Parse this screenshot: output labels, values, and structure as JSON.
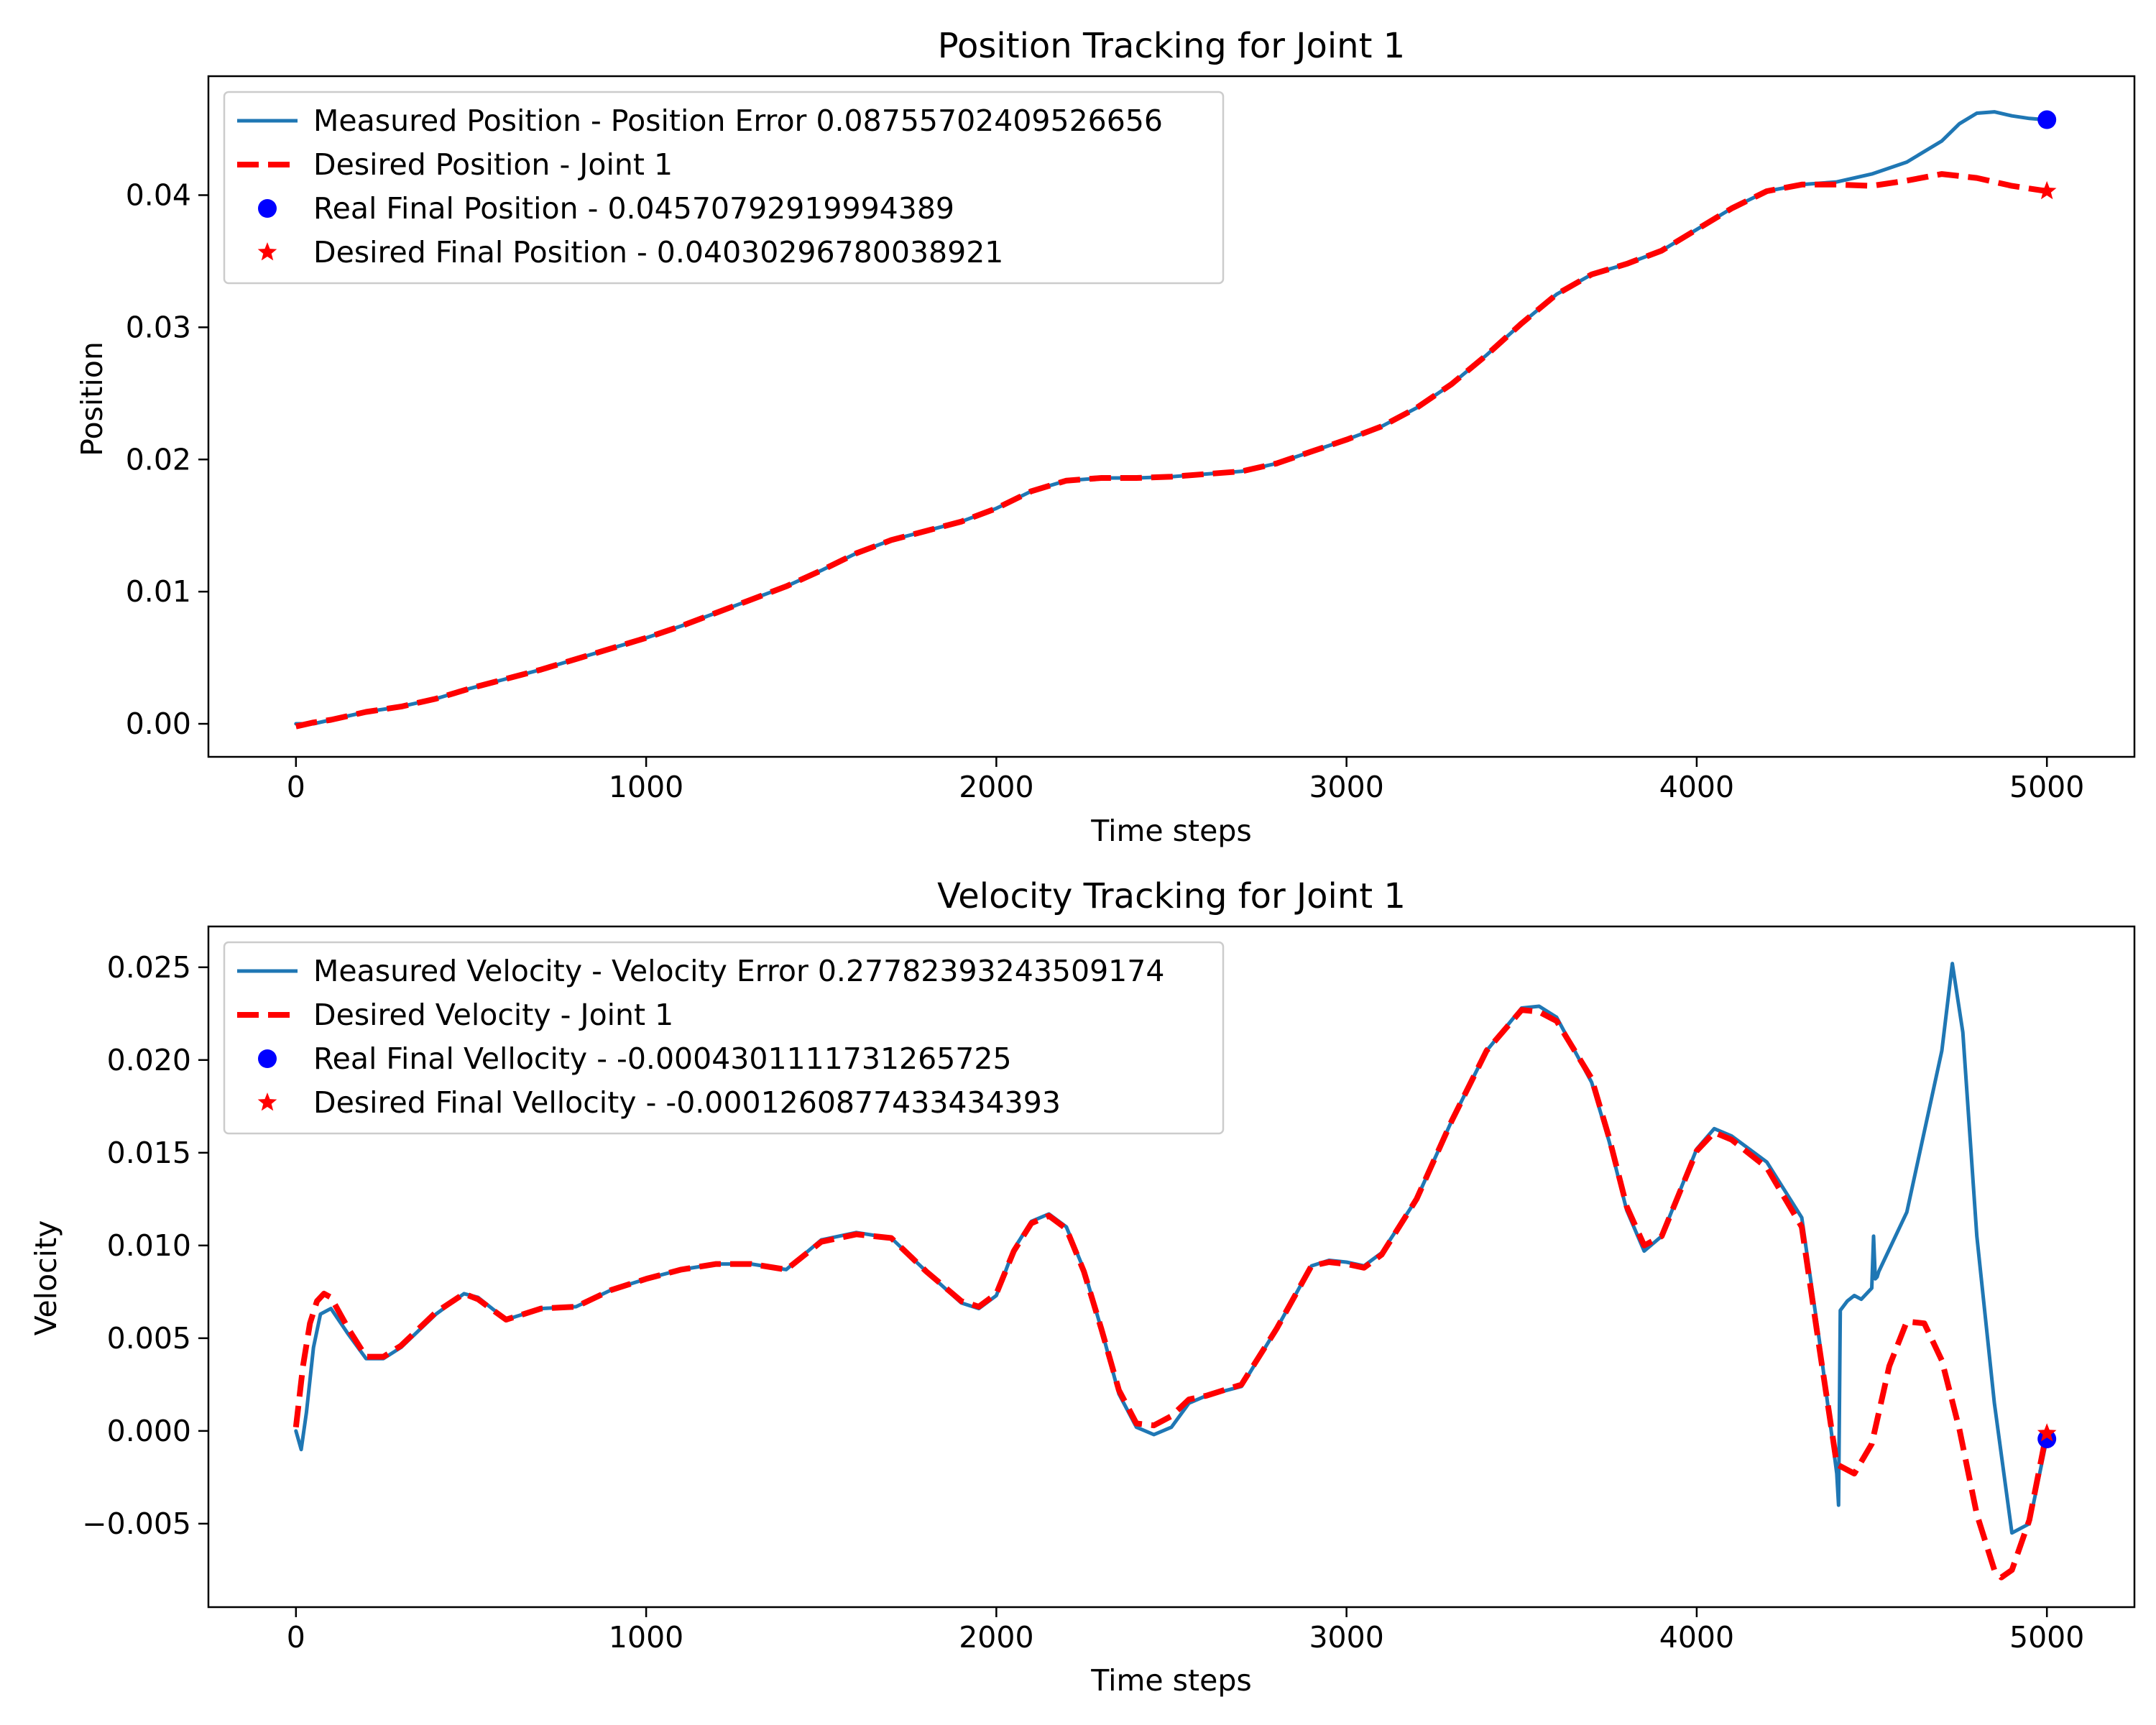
{
  "chart_data": [
    {
      "type": "line",
      "title": "Position Tracking for Joint 1",
      "xlabel": "Time steps",
      "ylabel": "Position",
      "xlim": [
        -250,
        5250
      ],
      "ylim": [
        -0.0025,
        0.049
      ],
      "xticks": [
        0,
        1000,
        2000,
        3000,
        4000,
        5000
      ],
      "xtick_labels": [
        "0",
        "1000",
        "2000",
        "3000",
        "4000",
        "5000"
      ],
      "yticks": [
        0.0,
        0.01,
        0.02,
        0.03,
        0.04
      ],
      "ytick_labels": [
        "0.00",
        "0.01",
        "0.02",
        "0.03",
        "0.04"
      ],
      "grid": false,
      "legend_position": "upper left",
      "series": [
        {
          "name": "Measured Position - Position Error 0.08755702409526656",
          "style": "solid",
          "color": "#1f77b4",
          "x": [
            0,
            50,
            100,
            150,
            200,
            300,
            400,
            500,
            600,
            700,
            800,
            900,
            1000,
            1100,
            1200,
            1300,
            1400,
            1500,
            1600,
            1700,
            1800,
            1900,
            2000,
            2100,
            2200,
            2300,
            2400,
            2500,
            2600,
            2700,
            2800,
            2900,
            3000,
            3100,
            3200,
            3300,
            3400,
            3500,
            3600,
            3700,
            3800,
            3900,
            4000,
            4100,
            4200,
            4300,
            4400,
            4500,
            4600,
            4700,
            4750,
            4800,
            4850,
            4900,
            4950,
            5000
          ],
          "y": [
            0.0,
            0.0,
            0.0003,
            0.0006,
            0.0009,
            0.0013,
            0.0019,
            0.0027,
            0.0034,
            0.0041,
            0.0049,
            0.0057,
            0.0065,
            0.0074,
            0.0084,
            0.0094,
            0.0104,
            0.0116,
            0.0129,
            0.0139,
            0.0146,
            0.0153,
            0.0163,
            0.0176,
            0.0184,
            0.0186,
            0.0186,
            0.0187,
            0.0189,
            0.0191,
            0.0197,
            0.0206,
            0.0215,
            0.0225,
            0.0239,
            0.0257,
            0.0279,
            0.0303,
            0.0325,
            0.034,
            0.0348,
            0.0358,
            0.0374,
            0.039,
            0.0403,
            0.0408,
            0.041,
            0.0416,
            0.0425,
            0.0441,
            0.0454,
            0.0462,
            0.0463,
            0.046,
            0.0458,
            0.0457
          ]
        },
        {
          "name": "Desired Position - Joint 1",
          "style": "dashed",
          "color": "#ff0000",
          "x": [
            0,
            50,
            100,
            150,
            200,
            300,
            400,
            500,
            600,
            700,
            800,
            900,
            1000,
            1100,
            1200,
            1300,
            1400,
            1500,
            1600,
            1700,
            1800,
            1900,
            2000,
            2100,
            2200,
            2300,
            2400,
            2500,
            2600,
            2700,
            2800,
            2900,
            3000,
            3100,
            3200,
            3300,
            3400,
            3500,
            3600,
            3700,
            3800,
            3900,
            4000,
            4100,
            4200,
            4300,
            4400,
            4500,
            4600,
            4700,
            4800,
            4900,
            5000
          ],
          "y": [
            -0.0002,
            0.0001,
            0.0003,
            0.0006,
            0.0009,
            0.0013,
            0.0019,
            0.0027,
            0.0034,
            0.0041,
            0.0049,
            0.0057,
            0.0065,
            0.0074,
            0.0084,
            0.0094,
            0.0104,
            0.0116,
            0.0129,
            0.0139,
            0.0146,
            0.0153,
            0.0163,
            0.0176,
            0.0184,
            0.0186,
            0.0186,
            0.0187,
            0.0189,
            0.0191,
            0.0197,
            0.0206,
            0.0215,
            0.0225,
            0.0239,
            0.0257,
            0.0279,
            0.0303,
            0.0325,
            0.034,
            0.0348,
            0.0358,
            0.0374,
            0.039,
            0.0403,
            0.0408,
            0.0408,
            0.0407,
            0.0411,
            0.0416,
            0.0413,
            0.0407,
            0.0403
          ]
        },
        {
          "name": "Real Final Position - 0.04570792919994389",
          "style": "marker-circle",
          "color": "#0000ff",
          "x": [
            5000
          ],
          "y": [
            0.04570792919994389
          ]
        },
        {
          "name": "Desired Final Position - 0.04030296780038921",
          "style": "marker-star",
          "color": "#ff0000",
          "x": [
            5000
          ],
          "y": [
            0.04030296780038921
          ]
        }
      ]
    },
    {
      "type": "line",
      "title": "Velocity Tracking for Joint 1",
      "xlabel": "Time steps",
      "ylabel": "Velocity",
      "xlim": [
        -250,
        5250
      ],
      "ylim": [
        -0.0095,
        0.0272
      ],
      "xticks": [
        0,
        1000,
        2000,
        3000,
        4000,
        5000
      ],
      "xtick_labels": [
        "0",
        "1000",
        "2000",
        "3000",
        "4000",
        "5000"
      ],
      "yticks": [
        -0.005,
        0.0,
        0.005,
        0.01,
        0.015,
        0.02,
        0.025
      ],
      "ytick_labels": [
        "−0.005",
        "0.000",
        "0.005",
        "0.010",
        "0.015",
        "0.020",
        "0.025"
      ],
      "grid": false,
      "legend_position": "upper left",
      "series": [
        {
          "name": "Measured Velocity - Velocity Error 0.27782393243509174",
          "style": "solid",
          "color": "#1f77b4",
          "x": [
            0,
            15,
            30,
            50,
            70,
            100,
            150,
            200,
            250,
            300,
            400,
            480,
            520,
            600,
            700,
            800,
            900,
            1000,
            1100,
            1200,
            1300,
            1400,
            1500,
            1600,
            1700,
            1800,
            1900,
            1950,
            2000,
            2050,
            2100,
            2150,
            2200,
            2250,
            2300,
            2350,
            2400,
            2450,
            2500,
            2550,
            2600,
            2700,
            2800,
            2900,
            2950,
            3000,
            3050,
            3100,
            3200,
            3300,
            3400,
            3500,
            3550,
            3600,
            3700,
            3750,
            3800,
            3850,
            3900,
            4000,
            4050,
            4100,
            4200,
            4300,
            4350,
            4400,
            4405,
            4410,
            4430,
            4450,
            4470,
            4500,
            4505,
            4510,
            4515,
            4520,
            4600,
            4700,
            4730,
            4760,
            4800,
            4850,
            4900,
            4950,
            5000
          ],
          "y": [
            0.0,
            -0.001,
            0.001,
            0.0045,
            0.0063,
            0.0066,
            0.0052,
            0.0039,
            0.0039,
            0.0045,
            0.0063,
            0.0074,
            0.0072,
            0.006,
            0.0066,
            0.0067,
            0.0076,
            0.0082,
            0.0087,
            0.009,
            0.009,
            0.0087,
            0.0103,
            0.0107,
            0.0104,
            0.0086,
            0.0069,
            0.0066,
            0.0073,
            0.0098,
            0.0113,
            0.0117,
            0.011,
            0.0087,
            0.0055,
            0.002,
            0.0002,
            -0.0002,
            0.0002,
            0.0015,
            0.0019,
            0.0024,
            0.0055,
            0.0089,
            0.0092,
            0.0091,
            0.0089,
            0.0096,
            0.0125,
            0.0167,
            0.0205,
            0.0228,
            0.0229,
            0.0223,
            0.0188,
            0.0156,
            0.0119,
            0.0097,
            0.0105,
            0.0152,
            0.0163,
            0.0159,
            0.0145,
            0.0115,
            0.0049,
            -0.0023,
            -0.004,
            0.0065,
            0.007,
            0.0073,
            0.0071,
            0.0077,
            0.0105,
            0.0082,
            0.0083,
            0.0086,
            0.0118,
            0.0205,
            0.0252,
            0.0215,
            0.0105,
            0.0015,
            -0.0055,
            -0.005,
            -0.0004
          ]
        },
        {
          "name": "Desired Velocity - Joint 1",
          "style": "dashed",
          "color": "#ff0000",
          "x": [
            0,
            20,
            40,
            60,
            80,
            100,
            150,
            200,
            250,
            300,
            400,
            480,
            520,
            600,
            700,
            800,
            900,
            1000,
            1100,
            1200,
            1300,
            1400,
            1500,
            1600,
            1700,
            1800,
            1900,
            1950,
            2000,
            2050,
            2100,
            2150,
            2200,
            2250,
            2300,
            2350,
            2400,
            2450,
            2500,
            2550,
            2600,
            2700,
            2800,
            2900,
            2950,
            3000,
            3050,
            3100,
            3200,
            3300,
            3400,
            3500,
            3550,
            3600,
            3700,
            3750,
            3800,
            3850,
            3900,
            4000,
            4050,
            4100,
            4200,
            4300,
            4350,
            4400,
            4450,
            4500,
            4550,
            4600,
            4650,
            4700,
            4750,
            4800,
            4850,
            4870,
            4900,
            4950,
            5000
          ],
          "y": [
            0.0002,
            0.0035,
            0.0058,
            0.007,
            0.0074,
            0.0072,
            0.0055,
            0.004,
            0.004,
            0.0046,
            0.0064,
            0.0074,
            0.0071,
            0.006,
            0.0066,
            0.0067,
            0.0076,
            0.0082,
            0.0087,
            0.009,
            0.009,
            0.0087,
            0.0102,
            0.0106,
            0.0104,
            0.0086,
            0.007,
            0.0067,
            0.0074,
            0.0097,
            0.0112,
            0.0116,
            0.0109,
            0.0086,
            0.0055,
            0.0022,
            0.0004,
            0.0003,
            0.0008,
            0.0017,
            0.0019,
            0.0025,
            0.0055,
            0.0089,
            0.0091,
            0.009,
            0.0088,
            0.0095,
            0.0125,
            0.0167,
            0.0205,
            0.0227,
            0.0226,
            0.0221,
            0.019,
            0.0158,
            0.0121,
            0.01,
            0.0105,
            0.0151,
            0.0161,
            0.0157,
            0.0142,
            0.011,
            0.0045,
            -0.0018,
            -0.0023,
            -0.0007,
            0.0035,
            0.0059,
            0.0058,
            0.0038,
            0.0001,
            -0.0045,
            -0.0075,
            -0.0079,
            -0.0075,
            -0.0048,
            0.0
          ]
        },
        {
          "name": "Real Final Vellocity - -0.0004301111731265725",
          "style": "marker-circle",
          "color": "#0000ff",
          "x": [
            5000
          ],
          "y": [
            -0.0004301111731265725
          ]
        },
        {
          "name": "Desired Final Vellocity - -0.0001260877433434393",
          "style": "marker-star",
          "color": "#ff0000",
          "x": [
            5000
          ],
          "y": [
            -0.0001260877433434393
          ]
        }
      ]
    }
  ]
}
